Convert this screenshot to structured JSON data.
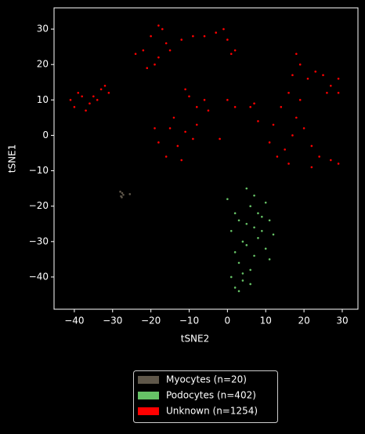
{
  "chart_data": {
    "type": "scatter",
    "xlabel": "tSNE2",
    "ylabel": "tSNE1",
    "xlim": [
      -45.3,
      34.1
    ],
    "ylim": [
      -49.1,
      36.0
    ],
    "xticks": [
      {
        "value": -40,
        "label": "−40"
      },
      {
        "value": -30,
        "label": "−30"
      },
      {
        "value": -20,
        "label": "−20"
      },
      {
        "value": -10,
        "label": "−10"
      },
      0,
      10,
      20,
      30
    ],
    "yticks": [
      {
        "value": -40,
        "label": "−40"
      },
      {
        "value": -30,
        "label": "−30"
      },
      {
        "value": -20,
        "label": "−20"
      },
      {
        "value": -10,
        "label": "−10"
      },
      0,
      10,
      20,
      30
    ],
    "legend": "below",
    "series": [
      {
        "name": "Myocytes (n=20)",
        "color": "#5f574a",
        "x": [
          -27.5,
          -27.8,
          -27.2,
          -28.0,
          -25.5,
          -27.6
        ],
        "y": [
          -16.3,
          -17.2,
          -16.8,
          -15.9,
          -16.6,
          -17.5
        ]
      },
      {
        "name": "Podocytes (n=402)",
        "color": "#66c266",
        "x": [
          1,
          2,
          3,
          4,
          5,
          6,
          7,
          8,
          9,
          10,
          11,
          12,
          0,
          2,
          4,
          6,
          8,
          10,
          3,
          5,
          7,
          9,
          1,
          3,
          5,
          7,
          2,
          4,
          6,
          11
        ],
        "y": [
          -40,
          -43,
          -36,
          -30,
          -25,
          -20,
          -17,
          -22,
          -27,
          -32,
          -24,
          -28,
          -18,
          -33,
          -41,
          -38,
          -29,
          -19,
          -24,
          -15,
          -34,
          -23,
          -27,
          -44,
          -31,
          -26,
          -22,
          -39,
          -42,
          -35
        ]
      },
      {
        "name": "Unknown (n=1254)",
        "color": "#ff0000",
        "x": [
          -40,
          -38,
          -36,
          -39,
          -37,
          -41,
          -35,
          -33,
          -31,
          -34,
          -32,
          -22,
          -20,
          -18,
          -17,
          -19,
          -16,
          -21,
          -24,
          -15,
          -18,
          -12,
          -9,
          -6,
          -3,
          0,
          1,
          -1,
          2,
          -10,
          -8,
          -6,
          -5,
          -11,
          0,
          2,
          -18,
          -15,
          -13,
          -11,
          -14,
          -9,
          -16,
          -12,
          -8,
          -19,
          -2,
          12,
          14,
          16,
          17,
          18,
          15,
          19,
          13,
          20,
          16,
          11,
          8,
          22,
          17,
          19,
          21,
          23,
          25,
          18,
          27,
          29,
          26,
          29,
          24,
          27,
          29,
          22,
          6,
          7
        ],
        "y": [
          8,
          11,
          9,
          12,
          7,
          10,
          11,
          13,
          12,
          10,
          14,
          24,
          28,
          22,
          30,
          20,
          26,
          19,
          23,
          24,
          31,
          27,
          28,
          28,
          29,
          27,
          23,
          30,
          24,
          11,
          8,
          10,
          7,
          13,
          10,
          8,
          -2,
          2,
          -3,
          1,
          5,
          -1,
          -6,
          -7,
          3,
          2,
          -1,
          3,
          8,
          12,
          0,
          5,
          -4,
          10,
          -6,
          2,
          -8,
          -2,
          4,
          -3,
          17,
          20,
          16,
          18,
          17,
          23,
          14,
          16,
          12,
          12,
          -6,
          -7,
          -8,
          -9,
          8,
          9
        ]
      }
    ]
  }
}
